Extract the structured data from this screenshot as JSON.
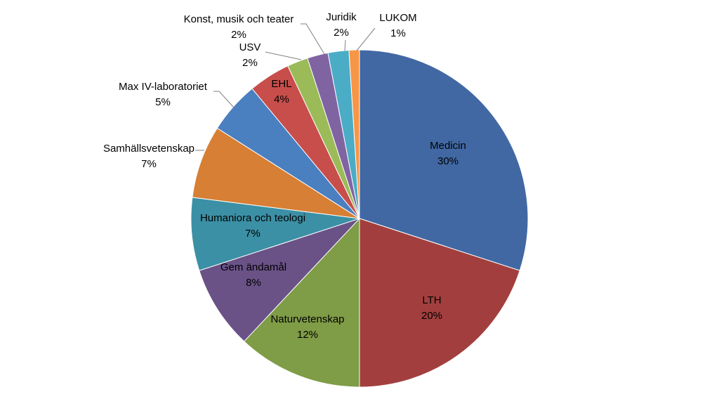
{
  "chart_data": {
    "type": "pie",
    "title": "",
    "slices": [
      {
        "label": "Medicin",
        "value": 30,
        "display": "30%",
        "color": "#4168A3"
      },
      {
        "label": "LTH",
        "value": 20,
        "display": "20%",
        "color": "#A23F3E"
      },
      {
        "label": "Naturvetenskap",
        "value": 12,
        "display": "12%",
        "color": "#7F9C46"
      },
      {
        "label": "Gem ändamål",
        "value": 8,
        "display": "8%",
        "color": "#6A5287"
      },
      {
        "label": "Humaniora och teologi",
        "value": 7,
        "display": "7%",
        "color": "#3B90A5"
      },
      {
        "label": "Samhällsvetenskap",
        "value": 7,
        "display": "7%",
        "color": "#D67F35"
      },
      {
        "label": "Max IV-laboratoriet",
        "value": 5,
        "display": "5%",
        "color": "#4A7FC0"
      },
      {
        "label": "EHL",
        "value": 4,
        "display": "4%",
        "color": "#C74E4B"
      },
      {
        "label": "USV",
        "value": 2,
        "display": "2%",
        "color": "#9BBB59"
      },
      {
        "label": "Konst, musik och teater",
        "value": 2,
        "display": "2%",
        "color": "#8064A2"
      },
      {
        "label": "Juridik",
        "value": 2,
        "display": "2%",
        "color": "#4BACC6"
      },
      {
        "label": "LUKOM",
        "value": 1,
        "display": "1%",
        "color": "#F79646"
      }
    ],
    "legend": "none",
    "data_labels": "category name and percentage"
  }
}
